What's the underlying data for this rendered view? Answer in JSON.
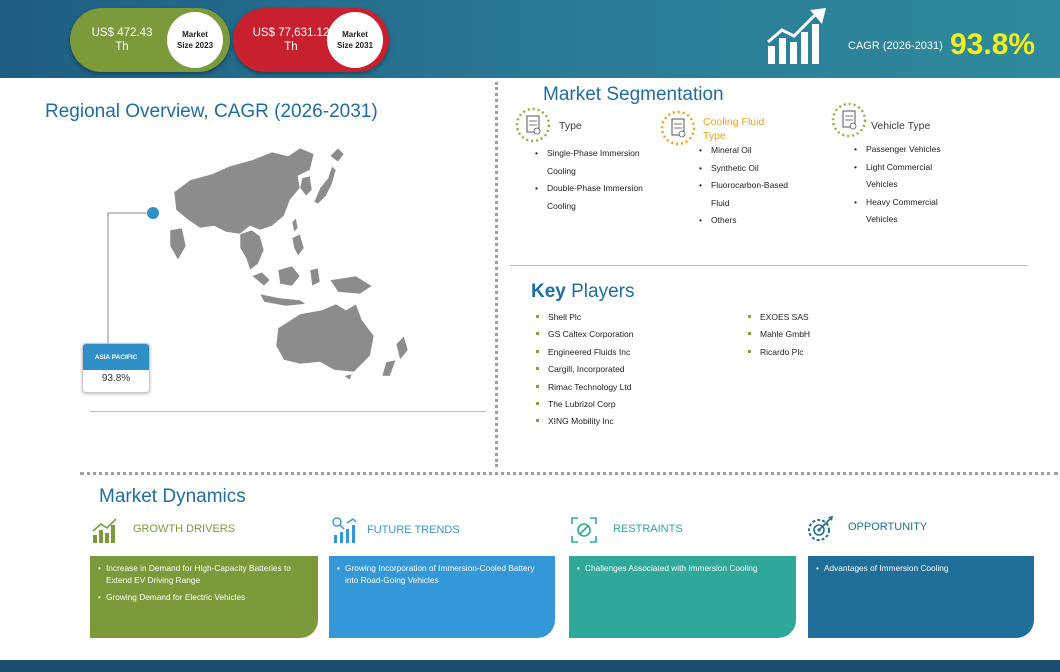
{
  "header": {
    "size_2023": {
      "value": "US$ 472.43 Th",
      "label": "Market Size 2023"
    },
    "size_2031": {
      "value": "US$ 77,631.12 Th",
      "label": "Market Size 2031"
    },
    "cagr_label": "CAGR (2026-2031)",
    "cagr_value": "93.8%"
  },
  "regional": {
    "title": "Regional Overview, CAGR (2026-2031)",
    "region_name": "ASIA PACIFIC",
    "region_value": "93.8%"
  },
  "segmentation": {
    "title": "Market Segmentation",
    "groups": [
      {
        "heading": "Type",
        "color": "#3a3a3a",
        "icon": "document-icon",
        "items": [
          "Single-Phase Immersion Cooling",
          "Double-Phase Immersion Cooling"
        ]
      },
      {
        "heading": "Cooling Fluid Type",
        "color": "#f2a01a",
        "icon": "document-icon",
        "items": [
          "Mineral Oil",
          "Synthetic Oil",
          "Fluorocarbon-Based Fluid",
          "Others"
        ]
      },
      {
        "heading": "Vehicle Type",
        "color": "#3a3a3a",
        "icon": "document-icon",
        "items": [
          "Passenger Vehicles",
          "Light Commercial Vehicles",
          "Heavy Commercial Vehicles"
        ]
      }
    ]
  },
  "key_players": {
    "title_bold": "Key",
    "title_rest": " Players",
    "column1": [
      "Shell Plc",
      "GS Caltex Corporation",
      "Engineered Fluids Inc",
      "Cargill, Incorporated",
      "Rimac Technology Ltd",
      "The Lubrizol Corp",
      "XING Mobility Inc"
    ],
    "column2": [
      "EXOES SAS",
      "Mahle GmbH",
      "Ricardo Plc"
    ]
  },
  "dynamics": {
    "title": "Market Dynamics",
    "blocks": [
      {
        "heading": "GROWTH DRIVERS",
        "color": "#7b9a3a",
        "icon": "growth-chart-icon",
        "items": [
          "Increase in Demand for High-Capacity Batteries to Extend EV Driving Range",
          "Growing Demand for Electric Vehicles"
        ]
      },
      {
        "heading": "FUTURE TRENDS",
        "color": "#3397d8",
        "icon": "trend-analytics-icon",
        "items": [
          "Growing Incorporation of Immersion-Cooled Battery into Road-Going Vehicles"
        ]
      },
      {
        "heading": "RESTRAINTS",
        "color": "#2ea898",
        "icon": "restraint-icon",
        "items": [
          "Challenges Associated with Immersion Cooling"
        ]
      },
      {
        "heading": "OPPORTUNITY",
        "color": "#1f6f9a",
        "icon": "target-gear-icon",
        "items": [
          "Advantages of Immersion Cooling"
        ]
      }
    ]
  },
  "colors": {
    "header_bg": "#1e5d83",
    "accent_yellow": "#f4ef1a",
    "title_blue": "#1e6da3",
    "footer": "#1e4d72"
  }
}
